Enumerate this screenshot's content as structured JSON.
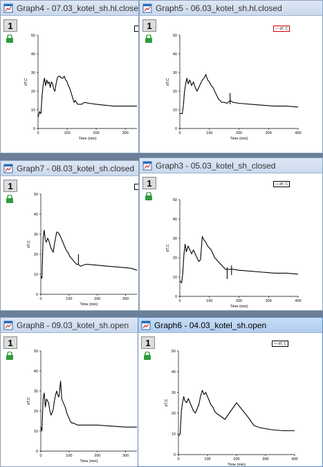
{
  "windows": [
    {
      "id": "graph4",
      "title": "Graph4 - 07.03_kotel_sh.hl.closed",
      "layer": "1",
      "legend": "",
      "active": false,
      "xlabel": "Time (min)",
      "ylabel": "dT,C",
      "xticks": [
        0,
        100,
        200,
        300
      ],
      "yticks": [
        0,
        10,
        20,
        30,
        40,
        50
      ],
      "points": [
        [
          0,
          6
        ],
        [
          5,
          9
        ],
        [
          10,
          8
        ],
        [
          14,
          18
        ],
        [
          18,
          24
        ],
        [
          22,
          27
        ],
        [
          26,
          23
        ],
        [
          30,
          26
        ],
        [
          34,
          24
        ],
        [
          38,
          25
        ],
        [
          42,
          22
        ],
        [
          46,
          25
        ],
        [
          50,
          24
        ],
        [
          54,
          21
        ],
        [
          58,
          20
        ],
        [
          62,
          24
        ],
        [
          66,
          27
        ],
        [
          70,
          28
        ],
        [
          75,
          28
        ],
        [
          80,
          27
        ],
        [
          85,
          27
        ],
        [
          90,
          28
        ],
        [
          95,
          26
        ],
        [
          100,
          25
        ],
        [
          104,
          23
        ],
        [
          108,
          22
        ],
        [
          112,
          20
        ],
        [
          116,
          18
        ],
        [
          120,
          16
        ],
        [
          124,
          14
        ],
        [
          128,
          15
        ],
        [
          132,
          14
        ],
        [
          136,
          13
        ],
        [
          140,
          13
        ],
        [
          150,
          13
        ],
        [
          160,
          14
        ],
        [
          175,
          13.5
        ],
        [
          200,
          13
        ],
        [
          230,
          12.5
        ],
        [
          260,
          12
        ],
        [
          290,
          12
        ],
        [
          320,
          12
        ],
        [
          340,
          12
        ]
      ],
      "spikes": []
    },
    {
      "id": "graph5",
      "title": "Graph5 - 06.03_kotel_sh.hl.closed",
      "layer": "1",
      "legend": "dT, C",
      "active": false,
      "xlabel": "Time (min)",
      "ylabel": "dT,C",
      "xticks": [
        0,
        100,
        200,
        300,
        400
      ],
      "yticks": [
        0,
        10,
        20,
        30,
        40,
        50
      ],
      "points": [
        [
          0,
          8
        ],
        [
          8,
          8
        ],
        [
          12,
          12
        ],
        [
          16,
          20
        ],
        [
          20,
          24
        ],
        [
          24,
          27
        ],
        [
          28,
          24
        ],
        [
          34,
          26
        ],
        [
          40,
          23
        ],
        [
          46,
          25
        ],
        [
          52,
          22
        ],
        [
          58,
          20
        ],
        [
          64,
          22
        ],
        [
          70,
          24
        ],
        [
          76,
          26
        ],
        [
          82,
          27
        ],
        [
          88,
          29
        ],
        [
          94,
          26
        ],
        [
          100,
          25
        ],
        [
          106,
          23
        ],
        [
          112,
          22
        ],
        [
          118,
          20
        ],
        [
          124,
          18
        ],
        [
          130,
          16
        ],
        [
          136,
          15
        ],
        [
          142,
          14
        ],
        [
          150,
          14
        ],
        [
          160,
          13.5
        ],
        [
          170,
          15
        ],
        [
          180,
          14
        ],
        [
          200,
          13.5
        ],
        [
          240,
          13
        ],
        [
          280,
          12.5
        ],
        [
          320,
          12
        ],
        [
          360,
          12
        ],
        [
          400,
          11.5
        ]
      ],
      "spikes": [
        [
          170,
          13
        ],
        [
          170,
          19
        ]
      ]
    },
    {
      "id": "graph7",
      "title": "Graph7 - 08.03_kotel_sh.closed",
      "layer": "1",
      "legend": "",
      "active": false,
      "xlabel": "Time (min)",
      "ylabel": "dT,C",
      "xticks": [
        0,
        100,
        200,
        300
      ],
      "yticks": [
        0,
        10,
        20,
        30,
        40,
        50
      ],
      "points": [
        [
          0,
          9
        ],
        [
          4,
          8
        ],
        [
          8,
          28
        ],
        [
          12,
          32
        ],
        [
          16,
          27
        ],
        [
          20,
          26
        ],
        [
          24,
          28
        ],
        [
          28,
          27
        ],
        [
          32,
          25
        ],
        [
          36,
          23
        ],
        [
          40,
          22
        ],
        [
          44,
          21
        ],
        [
          48,
          25
        ],
        [
          52,
          28
        ],
        [
          56,
          31
        ],
        [
          60,
          31
        ],
        [
          66,
          30
        ],
        [
          72,
          28
        ],
        [
          78,
          26
        ],
        [
          84,
          24
        ],
        [
          90,
          22
        ],
        [
          96,
          21
        ],
        [
          102,
          19
        ],
        [
          108,
          18
        ],
        [
          114,
          17
        ],
        [
          120,
          16
        ],
        [
          126,
          15
        ],
        [
          132,
          15
        ],
        [
          140,
          14
        ],
        [
          160,
          15
        ],
        [
          200,
          14.5
        ],
        [
          240,
          14
        ],
        [
          280,
          13.5
        ],
        [
          320,
          13
        ],
        [
          340,
          12
        ]
      ],
      "spikes": [
        [
          133,
          15
        ],
        [
          133,
          20
        ]
      ]
    },
    {
      "id": "graph3",
      "title": "Graph3 - 05.03_kotel_sh_closed",
      "layer": "1",
      "legend": "dT, C",
      "active": false,
      "xlabel": "Time (min)",
      "ylabel": "dT,C",
      "xticks": [
        0,
        100,
        200,
        300,
        400
      ],
      "yticks": [
        0,
        10,
        20,
        30,
        40,
        50
      ],
      "points": [
        [
          0,
          8
        ],
        [
          6,
          7
        ],
        [
          10,
          12
        ],
        [
          14,
          22
        ],
        [
          18,
          27
        ],
        [
          22,
          23
        ],
        [
          28,
          26
        ],
        [
          34,
          24
        ],
        [
          40,
          22
        ],
        [
          46,
          24
        ],
        [
          52,
          22
        ],
        [
          58,
          20
        ],
        [
          64,
          18
        ],
        [
          70,
          19
        ],
        [
          76,
          31
        ],
        [
          82,
          29
        ],
        [
          88,
          28
        ],
        [
          94,
          26
        ],
        [
          100,
          25
        ],
        [
          106,
          24
        ],
        [
          112,
          22
        ],
        [
          118,
          20
        ],
        [
          124,
          19
        ],
        [
          130,
          18
        ],
        [
          136,
          17
        ],
        [
          142,
          16
        ],
        [
          148,
          15
        ],
        [
          154,
          14
        ],
        [
          160,
          14
        ],
        [
          170,
          14
        ],
        [
          180,
          14
        ],
        [
          200,
          13.5
        ],
        [
          240,
          13
        ],
        [
          280,
          12.5
        ],
        [
          320,
          12
        ],
        [
          360,
          12
        ],
        [
          400,
          11.5
        ]
      ],
      "spikes": [
        [
          160,
          9
        ],
        [
          160,
          15
        ],
        [
          175,
          11
        ],
        [
          175,
          16
        ]
      ]
    },
    {
      "id": "graph8",
      "title": "Graph8 - 09.03_kotel_sh.open",
      "layer": "1",
      "legend": "",
      "active": false,
      "xlabel": "Time (min)",
      "ylabel": "dT,C",
      "xticks": [
        0,
        100,
        200,
        300
      ],
      "yticks": [
        0,
        10,
        20,
        30,
        40,
        50
      ],
      "points": [
        [
          0,
          12
        ],
        [
          4,
          10
        ],
        [
          8,
          26
        ],
        [
          12,
          29
        ],
        [
          16,
          22
        ],
        [
          20,
          26
        ],
        [
          24,
          25
        ],
        [
          28,
          24
        ],
        [
          32,
          20
        ],
        [
          36,
          18
        ],
        [
          40,
          19
        ],
        [
          44,
          21
        ],
        [
          48,
          25
        ],
        [
          52,
          28
        ],
        [
          56,
          30
        ],
        [
          60,
          28
        ],
        [
          64,
          27
        ],
        [
          70,
          35
        ],
        [
          74,
          26
        ],
        [
          80,
          24
        ],
        [
          86,
          22
        ],
        [
          92,
          19
        ],
        [
          98,
          17
        ],
        [
          104,
          15
        ],
        [
          110,
          14
        ],
        [
          116,
          14
        ],
        [
          122,
          13.5
        ],
        [
          130,
          13
        ],
        [
          150,
          13
        ],
        [
          200,
          13
        ],
        [
          250,
          12.5
        ],
        [
          300,
          12
        ],
        [
          340,
          12
        ]
      ],
      "spikes": []
    },
    {
      "id": "graph6",
      "title": "Graph6 - 04.03_kotel_sh.open",
      "layer": "1",
      "legend": "dT, C",
      "active": true,
      "xlabel": "Time (min)",
      "ylabel": "dT,C",
      "xticks": [
        0,
        100,
        200,
        300,
        400
      ],
      "yticks": [
        0,
        10,
        20,
        30,
        40,
        50
      ],
      "points": [
        [
          0,
          9
        ],
        [
          6,
          10
        ],
        [
          10,
          21
        ],
        [
          14,
          25
        ],
        [
          18,
          28
        ],
        [
          22,
          26
        ],
        [
          28,
          25
        ],
        [
          34,
          27
        ],
        [
          40,
          25
        ],
        [
          46,
          23
        ],
        [
          52,
          21
        ],
        [
          58,
          20
        ],
        [
          64,
          22
        ],
        [
          70,
          24
        ],
        [
          76,
          28
        ],
        [
          82,
          31
        ],
        [
          88,
          29
        ],
        [
          94,
          30
        ],
        [
          100,
          28
        ],
        [
          106,
          26
        ],
        [
          112,
          24
        ],
        [
          118,
          23
        ],
        [
          124,
          21
        ],
        [
          130,
          20
        ],
        [
          140,
          19
        ],
        [
          160,
          17
        ],
        [
          200,
          25
        ],
        [
          240,
          18
        ],
        [
          260,
          14
        ],
        [
          280,
          13
        ],
        [
          320,
          12
        ],
        [
          360,
          11.5
        ],
        [
          400,
          11.5
        ]
      ],
      "spikes": []
    }
  ]
}
